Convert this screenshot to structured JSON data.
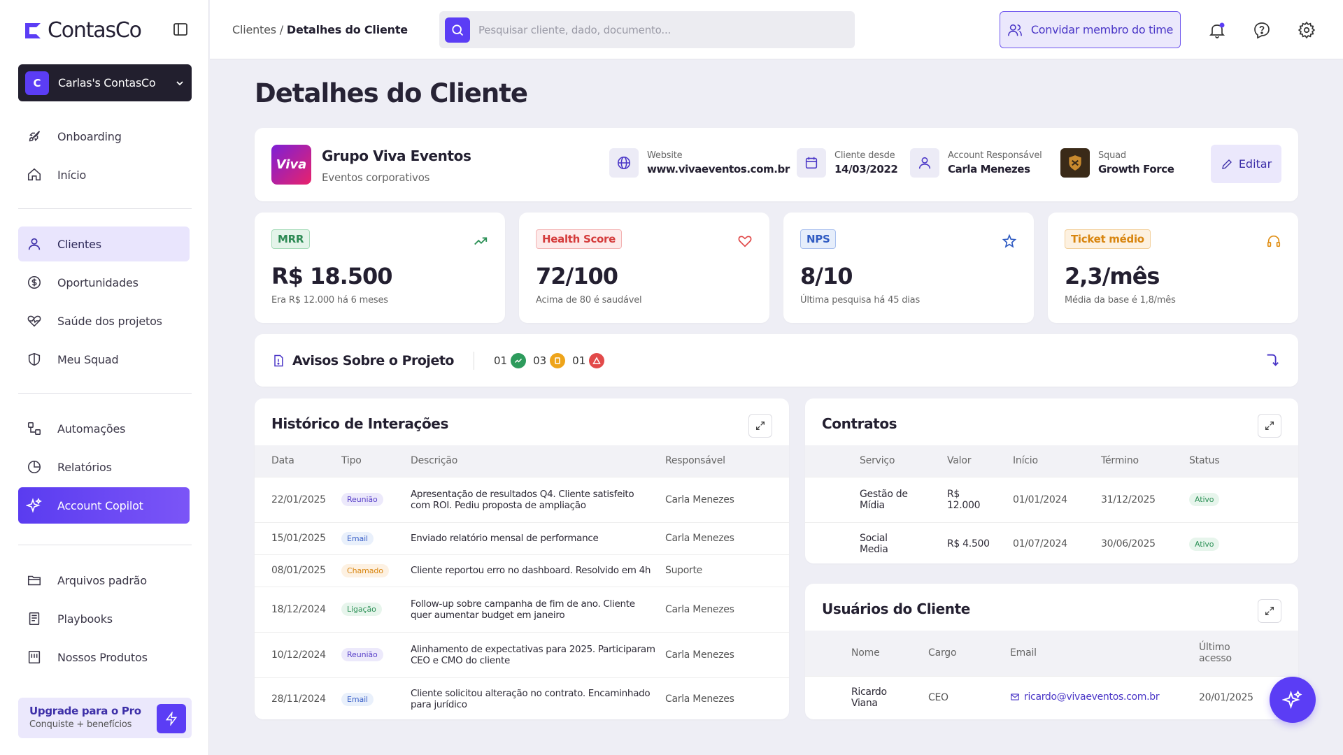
{
  "app": {
    "name": "ContasCo",
    "workspace": "Carlas's ContasCo",
    "workspace_initial": "C",
    "accent": "#5b3df5"
  },
  "sidebar": {
    "items": [
      {
        "label": "Onboarding",
        "icon": "rocket-icon"
      },
      {
        "label": "Início",
        "icon": "home-icon"
      },
      {
        "label": "Clientes",
        "icon": "user-icon",
        "active": true
      },
      {
        "label": "Oportunidades",
        "icon": "dollar-icon"
      },
      {
        "label": "Saúde dos projetos",
        "icon": "heart-pulse-icon"
      },
      {
        "label": "Meu Squad",
        "icon": "shield-icon"
      },
      {
        "label": "Automações",
        "icon": "workflow-icon"
      },
      {
        "label": "Relatórios",
        "icon": "pie-chart-icon"
      },
      {
        "label": "Account Copilot",
        "icon": "sparkles-icon"
      },
      {
        "label": "Arquivos padrão",
        "icon": "folder-icon"
      },
      {
        "label": "Playbooks",
        "icon": "book-icon"
      },
      {
        "label": "Nossos Produtos",
        "icon": "product-icon"
      }
    ],
    "upgrade": {
      "title": "Upgrade para o Pro",
      "subtitle": "Conquiste + benefícios"
    }
  },
  "header": {
    "breadcrumb_parent": "Clientes",
    "breadcrumb_sep": " / ",
    "breadcrumb_current": "Detalhes do Cliente",
    "search_placeholder": "Pesquisar cliente, dado, documento...",
    "invite_label": "Convidar membro do time"
  },
  "page": {
    "title": "Detalhes do Cliente"
  },
  "client": {
    "name": "Grupo Viva Eventos",
    "segment": "Eventos corporativos",
    "logo_text": "Viva",
    "website_label": "Website",
    "website": "www.vivaeventos.com.br",
    "since_label": "Cliente desde",
    "since": "14/03/2022",
    "account_label": "Account Responsável",
    "account": "Carla Menezes",
    "squad_label": "Squad",
    "squad": "Growth Force",
    "edit_label": "Editar"
  },
  "stats": [
    {
      "badge": "MRR",
      "value": "R$ 18.500",
      "note": "Era R$ 12.000 há 6 meses",
      "icon": "trending-up-icon"
    },
    {
      "badge": "Health Score",
      "value": "72/100",
      "note": "Acima de 80 é saudável",
      "icon": "heart-icon"
    },
    {
      "badge": "NPS",
      "value": "8/10",
      "note": "Última pesquisa há 45 dias",
      "icon": "star-icon"
    },
    {
      "badge": "Ticket médio",
      "value": "2,3/mês",
      "note": "Média da base é 1,8/mês",
      "icon": "headphones-icon"
    }
  ],
  "notices": {
    "title": "Avisos Sobre o Projeto",
    "counts": [
      "01",
      "03",
      "01"
    ]
  },
  "history": {
    "title": "Histórico de Interações",
    "columns": [
      "Data",
      "Tipo",
      "Descrição",
      "Responsável"
    ],
    "rows": [
      {
        "date": "22/01/2025",
        "type": "Reunião",
        "desc": "Apresentação de resultados Q4. Cliente satisfeito com ROI. Pediu proposta de ampliação",
        "owner": "Carla Menezes"
      },
      {
        "date": "15/01/2025",
        "type": "Email",
        "desc": "Enviado relatório mensal de performance",
        "owner": "Carla Menezes"
      },
      {
        "date": "08/01/2025",
        "type": "Chamado",
        "desc": "Cliente reportou erro no dashboard. Resolvido em 4h",
        "owner": "Suporte"
      },
      {
        "date": "18/12/2024",
        "type": "Ligação",
        "desc": "Follow-up sobre campanha de fim de ano. Cliente quer aumentar budget em janeiro",
        "owner": "Carla Menezes"
      },
      {
        "date": "10/12/2024",
        "type": "Reunião",
        "desc": "Alinhamento de expectativas para 2025. Participaram CEO e CMO do cliente",
        "owner": "Carla Menezes"
      },
      {
        "date": "28/11/2024",
        "type": "Email",
        "desc": "Cliente solicitou alteração no contrato. Encaminhado para jurídico",
        "owner": "Carla Menezes"
      }
    ]
  },
  "contracts": {
    "title": "Contratos",
    "columns": [
      "Serviço",
      "Valor",
      "Início",
      "Término",
      "Status"
    ],
    "rows": [
      {
        "service": "Gestão de Mídia",
        "value": "R$ 12.000",
        "start": "01/01/2024",
        "end": "31/12/2025",
        "status": "Ativo"
      },
      {
        "service": "Social Media",
        "value": "R$ 4.500",
        "start": "01/07/2024",
        "end": "30/06/2025",
        "status": "Ativo"
      }
    ]
  },
  "users": {
    "title": "Usuários do Cliente",
    "columns": [
      "Nome",
      "Cargo",
      "Email",
      "Último acesso"
    ],
    "rows": [
      {
        "name": "Ricardo Viana",
        "role": "CEO",
        "email": "ricardo@vivaeventos.com.br",
        "last": "20/01/2025"
      }
    ]
  }
}
